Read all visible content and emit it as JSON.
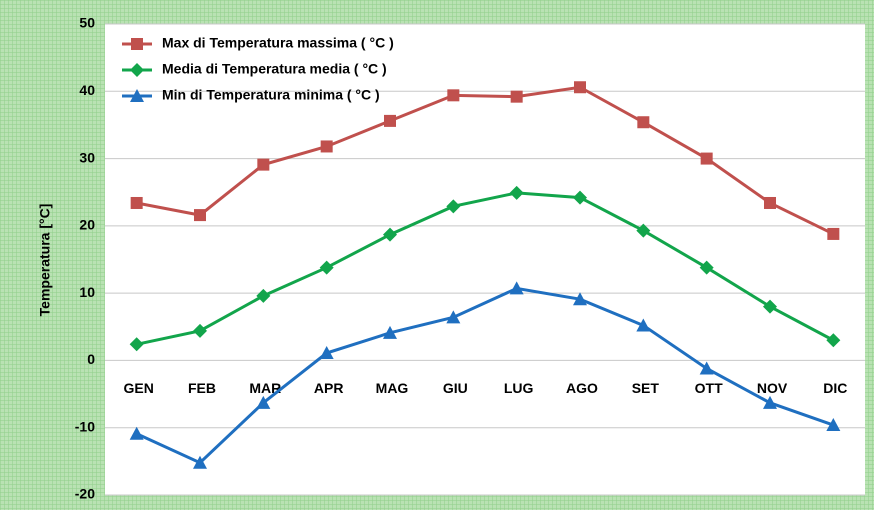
{
  "chart_data": {
    "type": "line",
    "ylabel": "Temperatura [°C]",
    "categories": [
      "GEN",
      "FEB",
      "MAR",
      "APR",
      "MAG",
      "GIU",
      "LUG",
      "AGO",
      "SET",
      "OTT",
      "NOV",
      "DIC"
    ],
    "series": [
      {
        "name": "Max di Temperatura massima ( °C )",
        "color": "#c0504d",
        "marker": "square",
        "values": [
          23.4,
          21.6,
          29.1,
          31.8,
          35.6,
          39.4,
          39.2,
          40.6,
          35.4,
          30.0,
          23.4,
          18.8
        ]
      },
      {
        "name": "Media di Temperatura media ( °C )",
        "color": "#12a54b",
        "marker": "diamond",
        "values": [
          2.4,
          4.4,
          9.6,
          13.8,
          18.7,
          22.9,
          24.9,
          24.2,
          19.3,
          13.8,
          8.0,
          3.0
        ]
      },
      {
        "name": "Min di Temperatura minima ( °C )",
        "color": "#1f6fc0",
        "marker": "triangle",
        "values": [
          -10.9,
          -15.2,
          -6.3,
          1.1,
          4.1,
          6.4,
          10.7,
          9.1,
          5.2,
          -1.2,
          -6.3,
          -9.6
        ]
      }
    ],
    "ylim": [
      -20,
      50
    ],
    "yticks": [
      -20,
      -10,
      0,
      10,
      20,
      30,
      40,
      50
    ],
    "grid": true,
    "legend": "upper left"
  }
}
